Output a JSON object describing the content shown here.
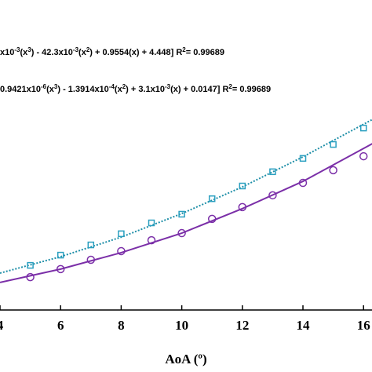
{
  "chart_data": {
    "type": "line",
    "x_label": "AoA (º)",
    "xlim": [
      4,
      16.3
    ],
    "xticks": [
      4,
      6,
      8,
      10,
      12,
      14,
      16
    ],
    "ylim": [
      0,
      100
    ],
    "annotations": [
      [
        {
          "text": "x10"
        },
        {
          "text": "-3",
          "sup": true
        },
        {
          "text": "(x"
        },
        {
          "text": "3",
          "sup": true
        },
        {
          "text": ") - 42.3x10"
        },
        {
          "text": "-3",
          "sup": true
        },
        {
          "text": "(x"
        },
        {
          "text": "2",
          "sup": true
        },
        {
          "text": ") + 0.9554(x) + 4.448]  R"
        },
        {
          "text": "2",
          "sup": true
        },
        {
          "text": "= 0.99689"
        }
      ],
      [
        {
          "text": "0.9421x10"
        },
        {
          "text": "-6",
          "sup": true
        },
        {
          "text": "(x"
        },
        {
          "text": "3",
          "sup": true
        },
        {
          "text": ") - 1.3914x10"
        },
        {
          "text": "-4",
          "sup": true
        },
        {
          "text": "(x"
        },
        {
          "text": "2",
          "sup": true
        },
        {
          "text": ") + 3.1x10"
        },
        {
          "text": "-3",
          "sup": true
        },
        {
          "text": "(x) + 0.0147]  R"
        },
        {
          "text": "2",
          "sup": true
        },
        {
          "text": "= 0.99689"
        }
      ]
    ],
    "series": [
      {
        "style": "dotted",
        "color": "#1f8fa8",
        "x": [
          4,
          6,
          8,
          10,
          12,
          14,
          16.3
        ],
        "values": [
          11.9,
          17.2,
          23.5,
          31.1,
          39.7,
          49.4,
          61.5
        ]
      },
      {
        "style": "solid",
        "color": "#7b2fa8",
        "x": [
          4,
          6,
          8,
          10,
          12,
          14,
          16.3
        ],
        "values": [
          8.9,
          13.2,
          18.5,
          24.8,
          32.7,
          41.5,
          53.7
        ]
      },
      {
        "style": "square",
        "color": "#2a9fc0",
        "x": [
          5,
          6,
          7,
          8,
          9,
          10,
          11,
          12,
          13,
          14,
          15,
          16
        ],
        "values": [
          14.4,
          17.7,
          21.0,
          24.6,
          28.1,
          30.9,
          35.9,
          40.0,
          44.6,
          48.9,
          53.4,
          58.7
        ]
      },
      {
        "style": "circle",
        "color": "#7b2fa8",
        "x": [
          5,
          6,
          7,
          8,
          9,
          10,
          11,
          12,
          13,
          14,
          15,
          16
        ],
        "values": [
          10.6,
          13.2,
          16.2,
          19.0,
          22.5,
          24.8,
          29.4,
          33.2,
          37.0,
          41.0,
          45.1,
          49.6
        ]
      }
    ]
  }
}
